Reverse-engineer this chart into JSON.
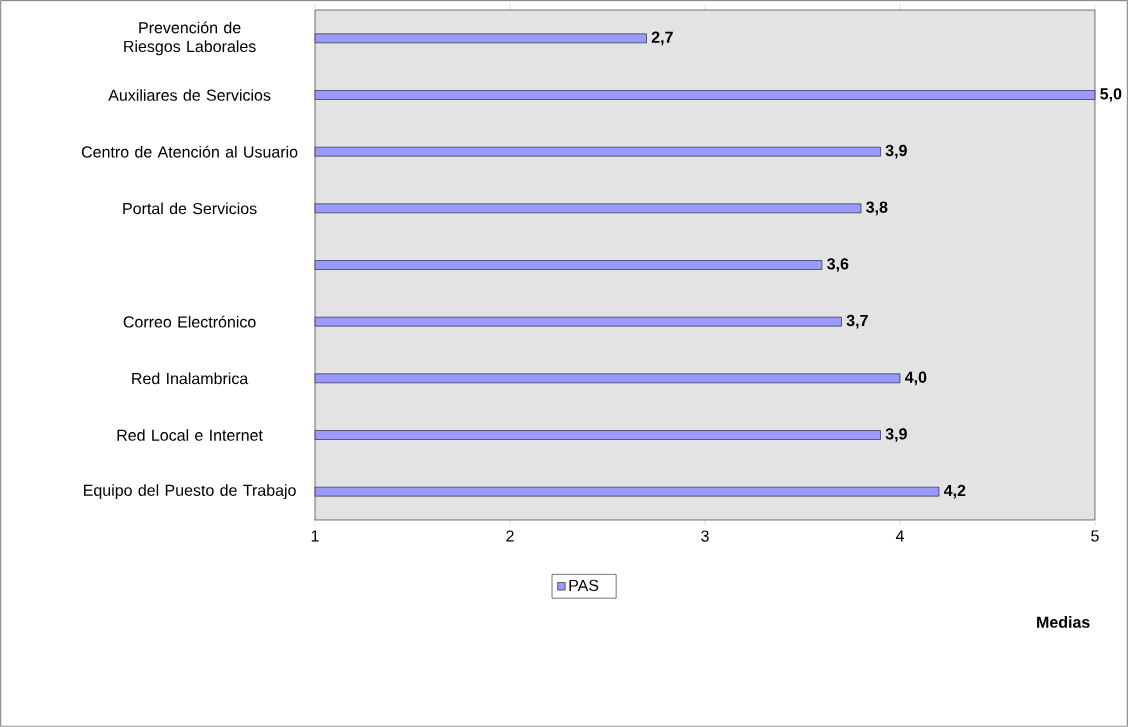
{
  "chart_data": {
    "type": "bar",
    "orientation": "horizontal",
    "xlabel": "Medias",
    "categories": [
      "Prevención de Riesgos Laborales",
      "Auxiliares de Servicios",
      "Centro de Atención al Usuario",
      "Portal de Servicios",
      null,
      "Correo Electrónico",
      "Red Inalambrica",
      "Red Local e Internet",
      "Equipo del Puesto de Trabajo"
    ],
    "series": [
      {
        "name": "PAS",
        "color": "#9999ff",
        "values": [
          2.7,
          5.0,
          3.9,
          3.8,
          3.6,
          3.7,
          4.0,
          3.9,
          4.2
        ],
        "value_labels": [
          "2,7",
          "5,0",
          "3,9",
          "3,8",
          "3,6",
          "3,7",
          "4,0",
          "3,9",
          "4,2"
        ]
      }
    ],
    "xlim": [
      1,
      5
    ],
    "xticks": [
      1,
      2,
      3,
      4,
      5
    ],
    "legend": "bottom"
  }
}
